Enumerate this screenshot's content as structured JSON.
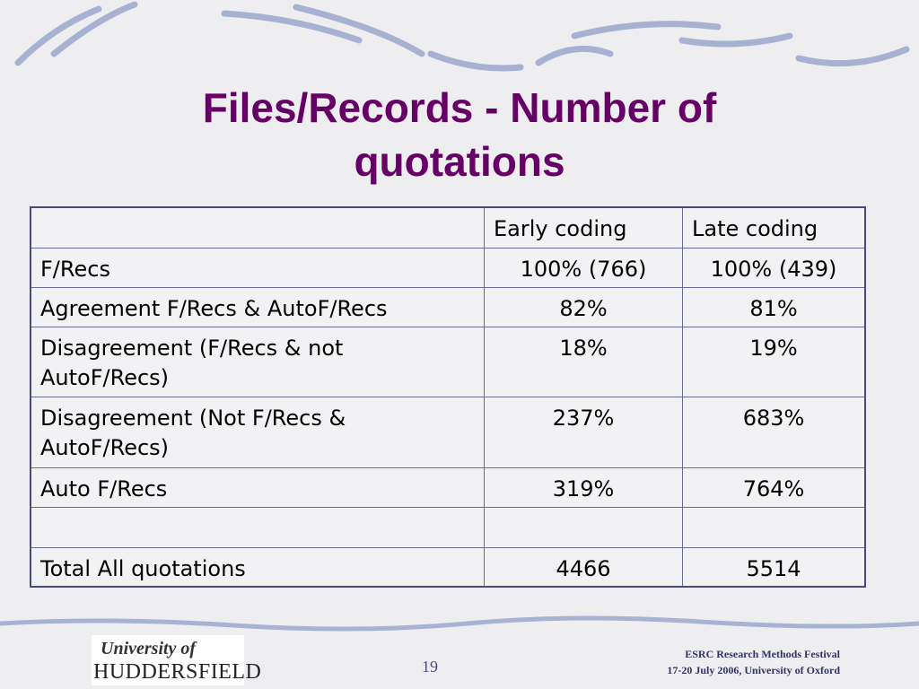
{
  "title": "Files/Records - Number of quotations",
  "table": {
    "header": [
      null,
      "Early coding",
      "Late coding"
    ],
    "rows": [
      [
        "F/Recs",
        "100% (766)",
        "100% (439)"
      ],
      [
        "Agreement F/Recs & AutoF/Recs",
        "82%",
        "81%"
      ],
      [
        "Disagreement (F/Recs & not AutoF/Recs)",
        "18%",
        "19%"
      ],
      [
        "Disagreement (Not F/Recs & AutoF/Recs)",
        "237%",
        "683%"
      ],
      [
        "Auto F/Recs",
        "319%",
        "764%"
      ],
      [
        null,
        null,
        null
      ],
      [
        "Total All quotations",
        "4466",
        "5514"
      ]
    ]
  },
  "footer": {
    "logo": [
      "University of",
      "HUDDERSFIELD"
    ],
    "page": "19",
    "event": [
      "ESRC Research Methods Festival",
      "17-20 July 2006, University of Oxford"
    ]
  }
}
